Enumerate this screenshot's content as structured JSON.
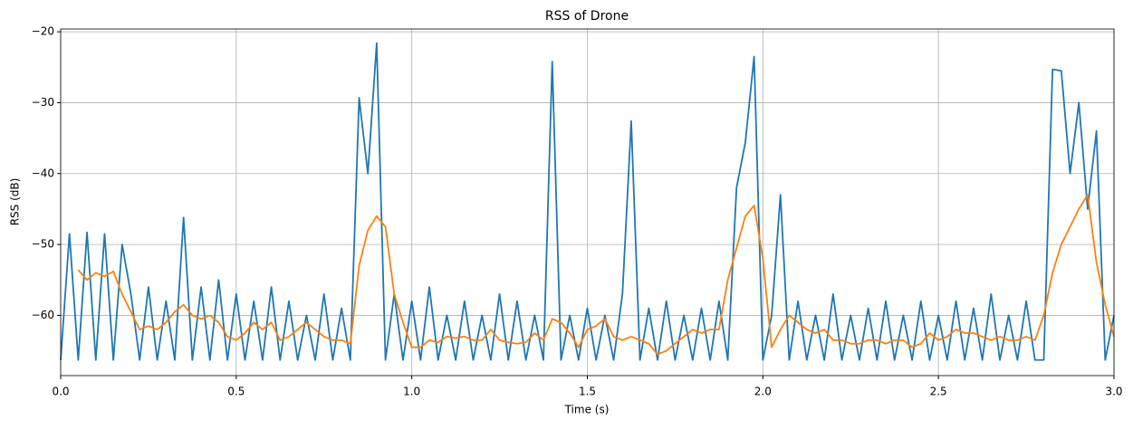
{
  "chart_data": {
    "type": "line",
    "title": "RSS of Drone",
    "x_label": "Time (s)",
    "y_label": "RSS (dB)",
    "x": [
      0,
      0.025,
      0.05,
      0.075,
      0.1,
      0.125,
      0.15,
      0.175,
      0.2,
      0.225,
      0.25,
      0.275,
      0.3,
      0.325,
      0.35,
      0.375,
      0.4,
      0.425,
      0.45,
      0.475,
      0.5,
      0.525,
      0.55,
      0.575,
      0.6,
      0.625,
      0.65,
      0.675,
      0.7,
      0.725,
      0.75,
      0.775,
      0.8,
      0.825,
      0.85,
      0.875,
      0.9,
      0.925,
      0.95,
      0.975,
      1,
      1.025,
      1.05,
      1.075,
      1.1,
      1.125,
      1.15,
      1.175,
      1.2,
      1.225,
      1.25,
      1.275,
      1.3,
      1.325,
      1.35,
      1.375,
      1.4,
      1.425,
      1.45,
      1.475,
      1.5,
      1.525,
      1.55,
      1.575,
      1.6,
      1.625,
      1.65,
      1.675,
      1.7,
      1.725,
      1.75,
      1.775,
      1.8,
      1.825,
      1.85,
      1.875,
      1.9,
      1.925,
      1.95,
      1.975,
      2,
      2.025,
      2.05,
      2.075,
      2.1,
      2.125,
      2.15,
      2.175,
      2.2,
      2.225,
      2.25,
      2.275,
      2.3,
      2.325,
      2.35,
      2.375,
      2.4,
      2.425,
      2.45,
      2.475,
      2.5,
      2.525,
      2.55,
      2.575,
      2.6,
      2.625,
      2.65,
      2.675,
      2.7,
      2.725,
      2.75,
      2.775,
      2.8,
      2.825,
      2.85,
      2.875,
      2.9,
      2.925,
      2.95,
      2.975,
      3
    ],
    "series": [
      {
        "color": "#1f77b4",
        "values": [
          -66.3,
          -48.5,
          -66.3,
          -48.3,
          -66.3,
          -48.5,
          -66.3,
          -50,
          -57,
          -66.3,
          -56,
          -66.3,
          -58,
          -66.3,
          -46.2,
          -66.3,
          -56,
          -66.3,
          -55,
          -66.3,
          -57,
          -66.3,
          -58,
          -66.3,
          -56,
          -66.3,
          -58,
          -66.3,
          -60,
          -66.3,
          -57,
          -66.3,
          -59,
          -66.3,
          -29.3,
          -40,
          -21.6,
          -66.3,
          -57,
          -66.3,
          -58,
          -66.3,
          -56,
          -66.3,
          -60,
          -66.3,
          -58,
          -66.3,
          -60,
          -66.3,
          -57,
          -66.3,
          -58,
          -66.3,
          -60,
          -66.3,
          -24.2,
          -66.3,
          -60,
          -66.3,
          -59,
          -66.3,
          -60,
          -66.3,
          -57,
          -32.6,
          -66.3,
          -59,
          -66.3,
          -58,
          -66.3,
          -60,
          -66.3,
          -59,
          -66.3,
          -58,
          -66.3,
          -42,
          -35.6,
          -23.5,
          -66.3,
          -60,
          -43,
          -66.3,
          -58,
          -66.3,
          -60,
          -66.3,
          -57,
          -66.3,
          -60,
          -66.3,
          -59,
          -66.3,
          -58,
          -66.3,
          -60,
          -66.3,
          -58,
          -66.3,
          -60,
          -66.3,
          -58,
          -66.3,
          -59,
          -66.3,
          -57,
          -66.3,
          -60,
          -66.3,
          -58,
          -66.3,
          -66.3,
          -25.3,
          -25.5,
          -40,
          -30,
          -45,
          -34,
          -66.3,
          -60
        ]
      },
      {
        "color": "#ff7f0e",
        "values": [
          null,
          null,
          -53.6,
          -55,
          -54,
          -54.5,
          -53.8,
          -57,
          -59.5,
          -62,
          -61.5,
          -62,
          -61,
          -59.5,
          -58.5,
          -60,
          -60.5,
          -60,
          -61,
          -63,
          -63.5,
          -62.5,
          -61,
          -62,
          -61,
          -63.5,
          -63,
          -62,
          -61,
          -62,
          -63,
          -63.5,
          -63.5,
          -64,
          -53,
          -48,
          -46,
          -47.5,
          -57,
          -61,
          -64.5,
          -64.5,
          -63.5,
          -63.8,
          -63,
          -63.2,
          -63,
          -63.5,
          -63.5,
          -62,
          -63.5,
          -63.8,
          -64,
          -63.8,
          -62.5,
          -63.5,
          -60.5,
          -61,
          -62.5,
          -64.5,
          -62,
          -61.5,
          -60.5,
          -63,
          -63.5,
          -63,
          -63.5,
          -64,
          -65.5,
          -65,
          -64,
          -63,
          -62,
          -62.5,
          -62,
          -62,
          -55,
          -50.5,
          -46,
          -44.5,
          -52,
          -64.5,
          -62,
          -60,
          -61,
          -62,
          -62.5,
          -62,
          -63.5,
          -63.5,
          -64,
          -64,
          -63.5,
          -63.5,
          -64,
          -63.5,
          -63.5,
          -64.5,
          -64,
          -62.5,
          -63.5,
          -63,
          -62,
          -62.5,
          -62.5,
          -63,
          -63.5,
          -63,
          -63.5,
          -63.5,
          -63,
          -63.5,
          -60,
          -54,
          -50,
          -47.5,
          -45,
          -43,
          -52.5,
          -58.5,
          -63
        ]
      }
    ],
    "xlim": [
      0,
      3
    ],
    "ylim": [
      -68.5,
      -19.6
    ],
    "xticks": [
      {
        "value": 0,
        "label": "0.0"
      },
      0.5,
      {
        "value": 1,
        "label": "1.0"
      },
      1.5,
      {
        "value": 2,
        "label": "2.0"
      },
      2.5,
      {
        "value": 3,
        "label": "3.0"
      }
    ],
    "yticks": [
      {
        "value": -60,
        "label": "−60"
      },
      {
        "value": -50,
        "label": "−50"
      },
      {
        "value": -40,
        "label": "−40"
      },
      {
        "value": -30,
        "label": "−30"
      },
      {
        "value": -20,
        "label": "−20"
      }
    ],
    "grid": true
  }
}
